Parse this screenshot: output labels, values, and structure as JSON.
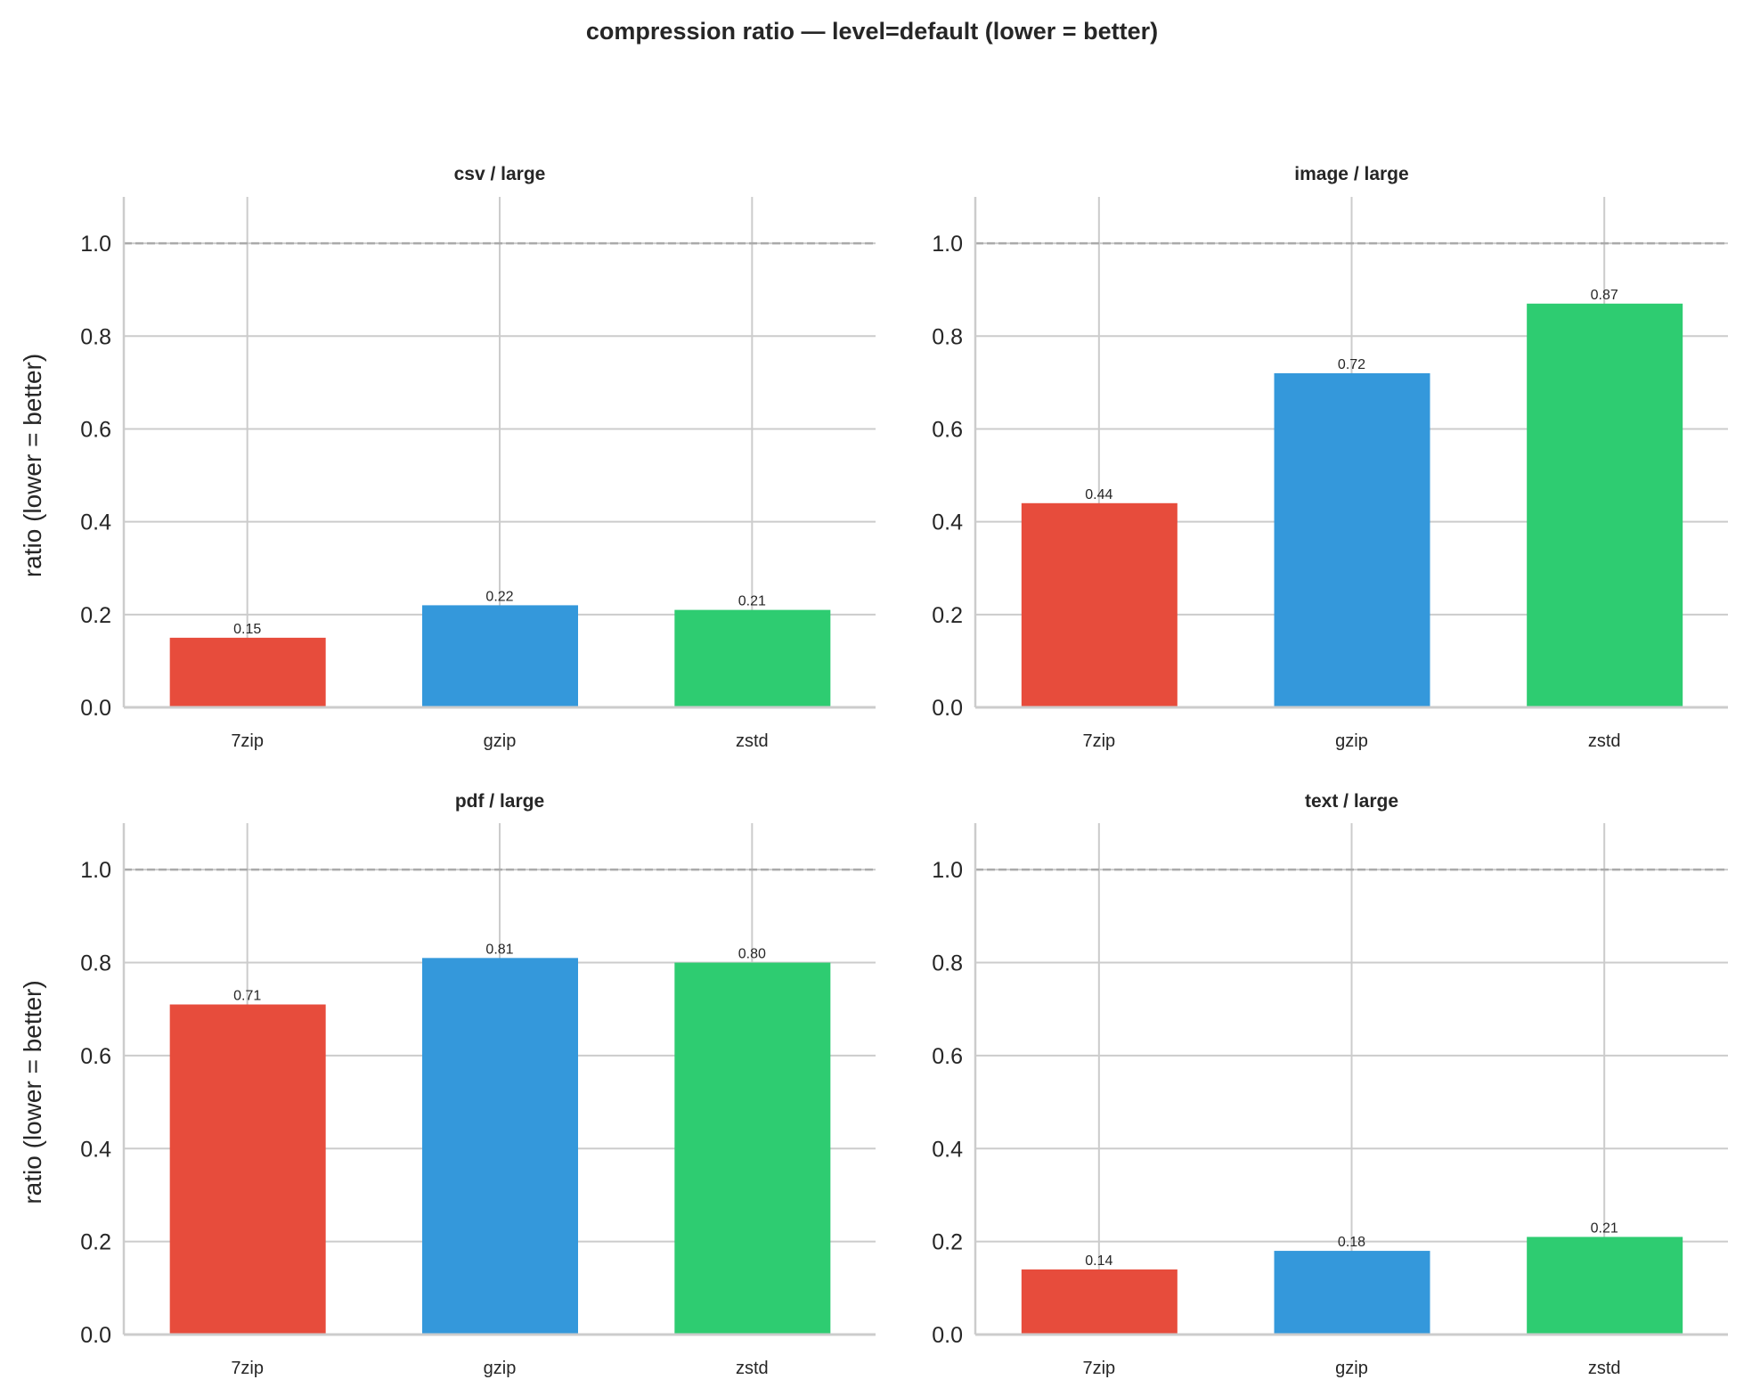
{
  "chart_data": [
    {
      "type": "bar",
      "title": "csv / large",
      "categories": [
        "7zip",
        "gzip",
        "zstd"
      ],
      "values": [
        0.15,
        0.22,
        0.21
      ],
      "data_labels": [
        "0.15",
        "0.22",
        "0.21"
      ],
      "ylabel": "ratio (lower = better)",
      "ylim": [
        0,
        1.1
      ],
      "reference_line": 1.0
    },
    {
      "type": "bar",
      "title": "image / large",
      "categories": [
        "7zip",
        "gzip",
        "zstd"
      ],
      "values": [
        0.44,
        0.72,
        0.87
      ],
      "data_labels": [
        "0.44",
        "0.72",
        "0.87"
      ],
      "ylabel": "",
      "ylim": [
        0,
        1.1
      ],
      "reference_line": 1.0
    },
    {
      "type": "bar",
      "title": "pdf / large",
      "categories": [
        "7zip",
        "gzip",
        "zstd"
      ],
      "values": [
        0.71,
        0.81,
        0.8
      ],
      "data_labels": [
        "0.71",
        "0.81",
        "0.80"
      ],
      "ylabel": "ratio (lower = better)",
      "ylim": [
        0,
        1.1
      ],
      "reference_line": 1.0
    },
    {
      "type": "bar",
      "title": "text / large",
      "categories": [
        "7zip",
        "gzip",
        "zstd"
      ],
      "values": [
        0.14,
        0.18,
        0.21
      ],
      "data_labels": [
        "0.14",
        "0.18",
        "0.21"
      ],
      "ylabel": "",
      "ylim": [
        0,
        1.1
      ],
      "reference_line": 1.0
    }
  ],
  "suptitle": "compression ratio — level=default (lower = better)",
  "yticks": [
    "0.0",
    "0.2",
    "0.4",
    "0.6",
    "0.8",
    "1.0"
  ],
  "colors": {
    "7zip": "#e74c3c",
    "gzip": "#3498db",
    "zstd": "#2ecc71",
    "grid": "#cccccc",
    "reference": "#aaaaaa"
  },
  "grid": true
}
